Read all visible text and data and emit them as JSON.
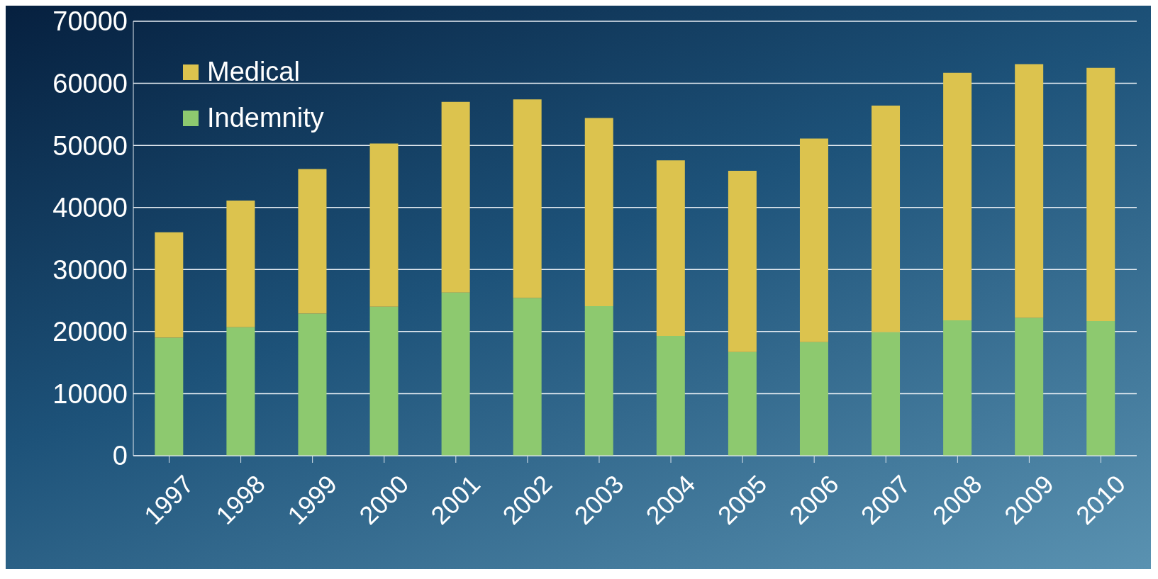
{
  "chart_data": {
    "type": "bar",
    "stacked": true,
    "categories": [
      "1997",
      "1998",
      "1999",
      "2000",
      "2001",
      "2002",
      "2003",
      "2004",
      "2005",
      "2006",
      "2007",
      "2008",
      "2009",
      "2010"
    ],
    "series": [
      {
        "name": "Indemnity",
        "color": "#8dc96f",
        "values": [
          19000,
          20700,
          22900,
          24000,
          26300,
          25400,
          24100,
          19300,
          16700,
          18300,
          19900,
          21800,
          22200,
          21700
        ]
      },
      {
        "name": "Medical",
        "color": "#dcc34e",
        "values": [
          17000,
          20400,
          23300,
          26300,
          30700,
          32000,
          30300,
          28300,
          29200,
          32800,
          36500,
          39900,
          40900,
          40800
        ]
      }
    ],
    "ylim": [
      0,
      70000
    ],
    "yticks": [
      0,
      10000,
      20000,
      30000,
      40000,
      50000,
      60000,
      70000
    ],
    "grid": "y",
    "legend": "top left"
  }
}
